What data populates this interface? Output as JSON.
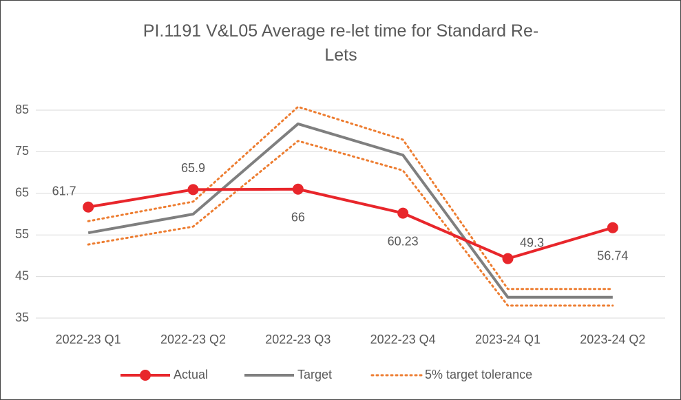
{
  "chart_data": {
    "type": "line",
    "title": "PI.1191 V&L05 Average re-let time for Standard Re-Lets",
    "categories": [
      "2022-23 Q1",
      "2022-23 Q2",
      "2022-23 Q3",
      "2022-23 Q4",
      "2023-24 Q1",
      "2023-24 Q2"
    ],
    "series": [
      {
        "name": "Actual",
        "color": "#e8262b",
        "values": [
          61.7,
          65.9,
          66,
          60.23,
          49.3,
          56.74
        ]
      },
      {
        "name": "Target",
        "color": "#7f7f7f",
        "values": [
          55.5,
          60,
          81.7,
          74.2,
          40,
          40
        ]
      },
      {
        "name": "5% target tolerance",
        "color": "#ed7d31",
        "values": [
          58.3,
          63,
          85.8,
          77.9,
          42,
          42
        ],
        "lower_values": [
          52.7,
          57,
          77.6,
          70.5,
          38,
          38
        ]
      }
    ],
    "ylim": [
      35,
      85
    ],
    "yticks": [
      35,
      45,
      55,
      65,
      75,
      85
    ],
    "grid": true,
    "legend": "bottom"
  }
}
